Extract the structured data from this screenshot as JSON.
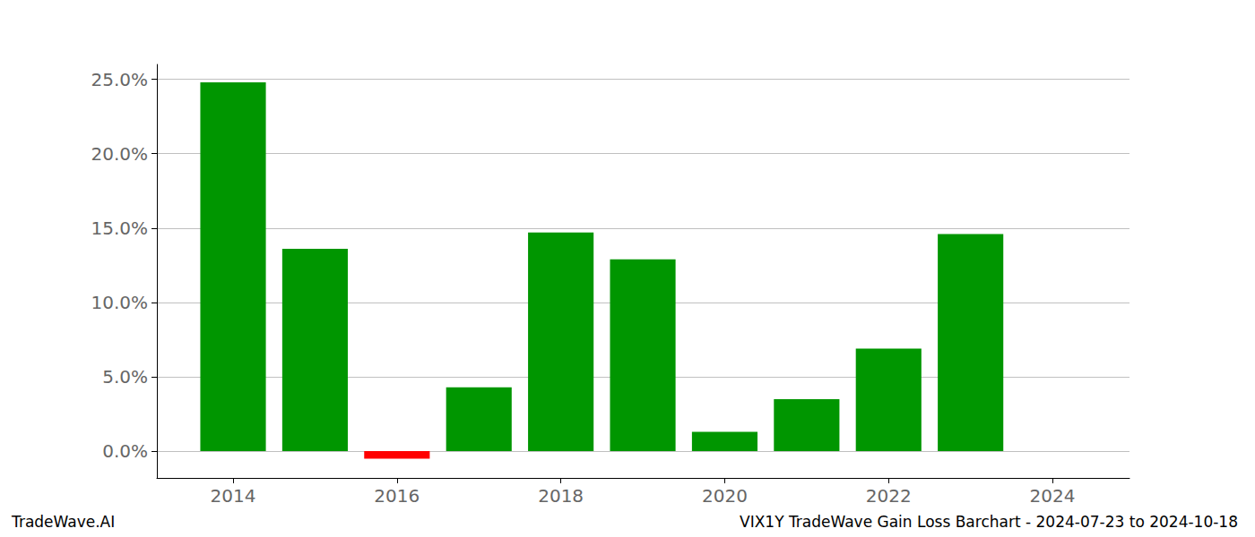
{
  "chart_data": {
    "type": "bar",
    "title": "VIX1Y TradeWave Gain Loss Barchart - 2024-07-23 to 2024-10-18",
    "annotations": [
      "TradeWave.AI"
    ],
    "x": [
      2014,
      2015,
      2016,
      2017,
      2018,
      2019,
      2020,
      2021,
      2022,
      2023
    ],
    "values": [
      24.8,
      13.6,
      -0.5,
      4.3,
      14.7,
      12.9,
      1.3,
      3.5,
      6.9,
      14.6
    ],
    "colors": [
      "#009600",
      "#009600",
      "#ff0000",
      "#009600",
      "#009600",
      "#009600",
      "#009600",
      "#009600",
      "#009600",
      "#009600"
    ],
    "xlim": [
      2013.07,
      2024.94
    ],
    "xticks": [
      2014,
      2016,
      2018,
      2020,
      2022,
      2024
    ],
    "ylim": [
      -1.8,
      26.0
    ],
    "yticks": [
      {
        "value": 0,
        "label": "0.0%"
      },
      {
        "value": 5,
        "label": "5.0%"
      },
      {
        "value": 10,
        "label": "10.0%"
      },
      {
        "value": 15,
        "label": "15.0%"
      },
      {
        "value": 20,
        "label": "20.0%"
      },
      {
        "value": 25,
        "label": "25.0%"
      }
    ],
    "grid": true
  }
}
